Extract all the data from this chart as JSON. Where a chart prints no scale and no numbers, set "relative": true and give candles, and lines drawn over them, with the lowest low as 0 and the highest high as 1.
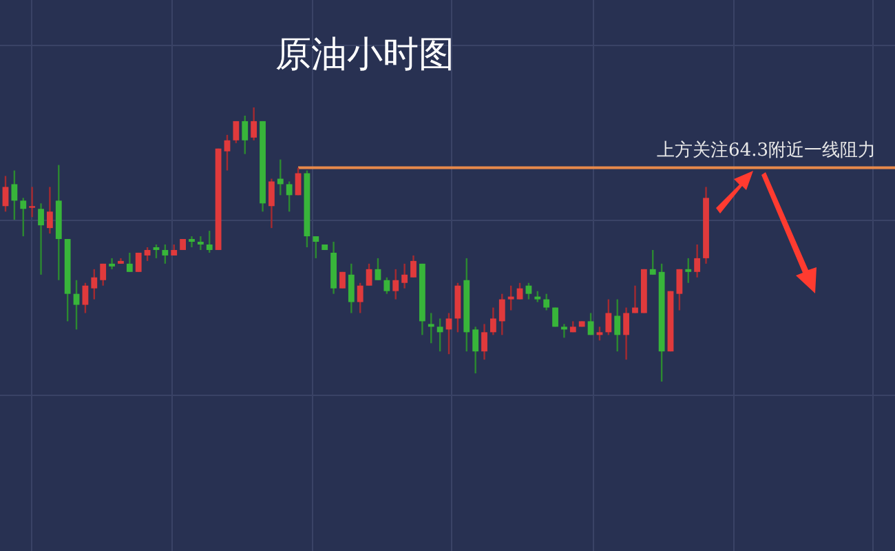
{
  "chart_data": {
    "type": "candlestick",
    "title": "原油小时图",
    "relative": true,
    "grid": true,
    "categories": [
      null,
      null,
      null,
      null,
      null,
      null,
      null,
      null,
      null,
      null,
      null,
      null,
      null,
      null,
      null,
      null,
      null,
      null,
      null,
      null,
      null,
      null,
      null,
      null,
      null,
      null,
      null,
      null,
      null,
      null,
      null,
      null,
      null,
      null,
      null,
      null,
      null,
      null,
      null,
      null,
      null,
      null,
      null,
      null,
      null,
      null,
      null,
      null,
      null,
      null,
      null,
      null,
      null,
      null,
      null,
      null,
      null,
      null,
      null,
      null,
      null,
      null,
      null,
      null,
      null,
      null,
      null,
      null,
      null,
      null,
      null,
      null,
      null,
      null,
      null,
      null,
      null,
      null,
      null,
      null
    ],
    "ohlc": [
      [
        0.64,
        0.75,
        0.62,
        0.71
      ],
      [
        0.72,
        0.77,
        0.59,
        0.66
      ],
      [
        0.66,
        0.67,
        0.53,
        0.63
      ],
      [
        0.64,
        0.71,
        0.6,
        0.64
      ],
      [
        0.63,
        0.65,
        0.39,
        0.57
      ],
      [
        0.56,
        0.71,
        0.54,
        0.62
      ],
      [
        0.66,
        0.79,
        0.37,
        0.52
      ],
      [
        0.52,
        0.52,
        0.22,
        0.32
      ],
      [
        0.32,
        0.37,
        0.19,
        0.28
      ],
      [
        0.28,
        0.36,
        0.25,
        0.35
      ],
      [
        0.34,
        0.41,
        0.3,
        0.38
      ],
      [
        0.37,
        0.43,
        0.35,
        0.43
      ],
      [
        0.43,
        0.45,
        0.41,
        0.42
      ],
      [
        0.43,
        0.45,
        0.43,
        0.44
      ],
      [
        0.43,
        0.47,
        0.4,
        0.4
      ],
      [
        0.4,
        0.47,
        0.4,
        0.47
      ],
      [
        0.46,
        0.49,
        0.44,
        0.48
      ],
      [
        0.49,
        0.5,
        0.45,
        0.48
      ],
      [
        0.48,
        0.5,
        0.43,
        0.46
      ],
      [
        0.46,
        0.5,
        0.46,
        0.48
      ],
      [
        0.48,
        0.52,
        0.48,
        0.52
      ],
      [
        0.52,
        0.53,
        0.49,
        0.51
      ],
      [
        0.51,
        0.53,
        0.48,
        0.5
      ],
      [
        0.5,
        0.55,
        0.47,
        0.48
      ],
      [
        0.48,
        0.85,
        0.48,
        0.85
      ],
      [
        0.84,
        0.9,
        0.77,
        0.88
      ],
      [
        0.88,
        0.95,
        0.87,
        0.95
      ],
      [
        0.95,
        0.97,
        0.83,
        0.88
      ],
      [
        0.89,
        1.0,
        0.88,
        0.95
      ],
      [
        0.95,
        0.95,
        0.62,
        0.65
      ],
      [
        0.64,
        0.74,
        0.56,
        0.73
      ],
      [
        0.74,
        0.81,
        0.68,
        0.72
      ],
      [
        0.72,
        0.73,
        0.62,
        0.68
      ],
      [
        0.68,
        0.78,
        0.68,
        0.76
      ],
      [
        0.76,
        0.77,
        0.49,
        0.53
      ],
      [
        0.53,
        0.53,
        0.45,
        0.51
      ],
      [
        0.5,
        0.5,
        0.48,
        0.48
      ],
      [
        0.47,
        0.51,
        0.32,
        0.34
      ],
      [
        0.34,
        0.4,
        0.34,
        0.4
      ],
      [
        0.39,
        0.43,
        0.25,
        0.29
      ],
      [
        0.29,
        0.36,
        0.25,
        0.35
      ],
      [
        0.35,
        0.43,
        0.35,
        0.41
      ],
      [
        0.41,
        0.45,
        0.37,
        0.37
      ],
      [
        0.37,
        0.38,
        0.32,
        0.33
      ],
      [
        0.33,
        0.41,
        0.3,
        0.37
      ],
      [
        0.36,
        0.43,
        0.34,
        0.39
      ],
      [
        0.38,
        0.46,
        0.38,
        0.44
      ],
      [
        0.43,
        0.43,
        0.17,
        0.22
      ],
      [
        0.21,
        0.25,
        0.14,
        0.2
      ],
      [
        0.2,
        0.23,
        0.11,
        0.18
      ],
      [
        0.19,
        0.25,
        0.1,
        0.23
      ],
      [
        0.23,
        0.36,
        0.18,
        0.35
      ],
      [
        0.37,
        0.45,
        0.11,
        0.18
      ],
      [
        0.19,
        0.2,
        0.03,
        0.11
      ],
      [
        0.11,
        0.21,
        0.08,
        0.18
      ],
      [
        0.18,
        0.27,
        0.17,
        0.23
      ],
      [
        0.22,
        0.32,
        0.17,
        0.3
      ],
      [
        0.3,
        0.35,
        0.26,
        0.31
      ],
      [
        0.3,
        0.36,
        0.3,
        0.34
      ],
      [
        0.35,
        0.36,
        0.3,
        0.32
      ],
      [
        0.31,
        0.33,
        0.29,
        0.3
      ],
      [
        0.3,
        0.32,
        0.26,
        0.27
      ],
      [
        0.27,
        0.27,
        0.2,
        0.2
      ],
      [
        0.2,
        0.21,
        0.16,
        0.19
      ],
      [
        0.18,
        0.22,
        0.18,
        0.2
      ],
      [
        0.2,
        0.22,
        0.2,
        0.22
      ],
      [
        0.22,
        0.25,
        0.17,
        0.17
      ],
      [
        0.17,
        0.2,
        0.15,
        0.18
      ],
      [
        0.18,
        0.3,
        0.17,
        0.25
      ],
      [
        0.24,
        0.3,
        0.11,
        0.17
      ],
      [
        0.17,
        0.27,
        0.08,
        0.25
      ],
      [
        0.25,
        0.35,
        0.25,
        0.27
      ],
      [
        0.25,
        0.41,
        0.25,
        0.41
      ],
      [
        0.41,
        0.48,
        0.39,
        0.39
      ],
      [
        0.4,
        0.43,
        0.0,
        0.11
      ],
      [
        0.11,
        0.33,
        0.11,
        0.33
      ],
      [
        0.32,
        0.41,
        0.26,
        0.41
      ],
      [
        0.41,
        0.45,
        0.36,
        0.4
      ],
      [
        0.4,
        0.5,
        0.38,
        0.45
      ],
      [
        0.45,
        0.71,
        0.43,
        0.67
      ]
    ],
    "ref_lines": [
      {
        "axis": "y",
        "value": 0.78,
        "label": "上方关注64.3附近一线阻力",
        "color": "#e8894a"
      }
    ]
  }
}
